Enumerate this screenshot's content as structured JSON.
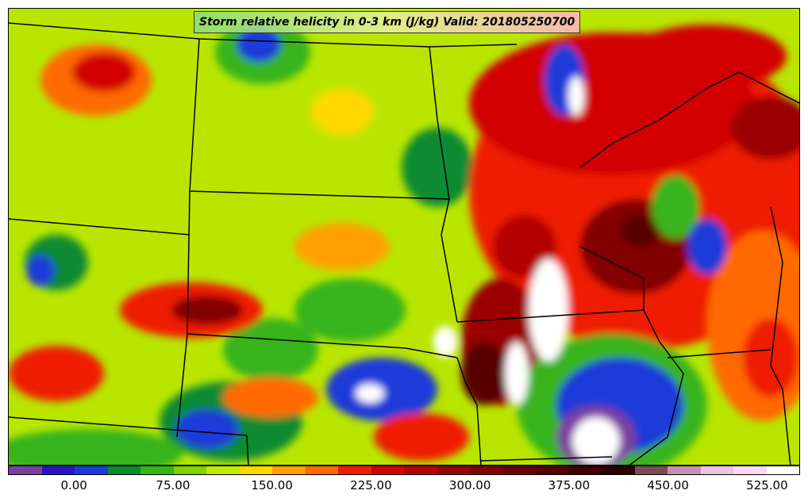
{
  "title": "Storm relative helicity in 0-3 km (J/kg) Valid: 201805250700",
  "colors": [
    "#7b3fa0",
    "#2a12c8",
    "#1c3ad8",
    "#0a8a30",
    "#37b41a",
    "#80d200",
    "#c0ea00",
    "#ffd800",
    "#ffa000",
    "#ff6a00",
    "#ee1c00",
    "#d20000",
    "#b40000",
    "#9a0000",
    "#820000",
    "#6c0000",
    "#560000",
    "#3e0000",
    "#2a0000",
    "#7a4a58",
    "#c690b6",
    "#eec0e8",
    "#ffd8f8",
    "#ffffff"
  ],
  "colorbar_ticks": [
    {
      "value": 0,
      "label": "0.00"
    },
    {
      "value": 75,
      "label": "75.00"
    },
    {
      "value": 150,
      "label": "150.00"
    },
    {
      "value": 225,
      "label": "225.00"
    },
    {
      "value": 300,
      "label": "300.00"
    },
    {
      "value": 375,
      "label": "375.00"
    },
    {
      "value": 450,
      "label": "450.00"
    },
    {
      "value": 525,
      "label": "525.00"
    }
  ],
  "colorbar_range": [
    -50,
    550
  ]
}
